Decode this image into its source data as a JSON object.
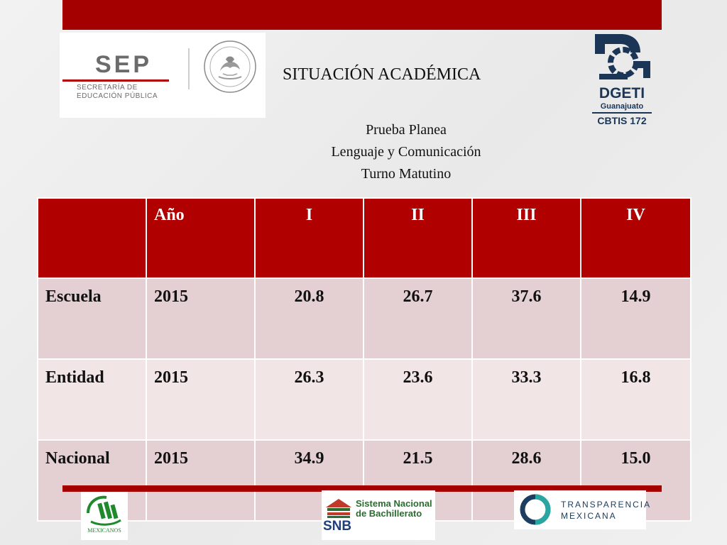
{
  "header": {
    "sep": {
      "name": "SEP",
      "subtitle_line1": "SECRETARÍA DE",
      "subtitle_line2": "EDUCACIÓN PÚBLICA"
    },
    "title": "SITUACIÓN ACADÉMICA",
    "subtitle_lines": [
      "Prueba Planea",
      "Lenguaje y Comunicación",
      "Turno Matutino"
    ],
    "dgeti": {
      "name": "DGETI",
      "state": "Guanajuato",
      "school": "CBTIS 172"
    }
  },
  "table": {
    "headers": [
      "",
      "Año",
      "I",
      "II",
      "III",
      "IV"
    ],
    "rows": [
      {
        "label": "Escuela",
        "year": "2015",
        "values": [
          "20.8",
          "26.7",
          "37.6",
          "14.9"
        ]
      },
      {
        "label": "Entidad",
        "year": "2015",
        "values": [
          "26.3",
          "23.6",
          "33.3",
          "16.8"
        ]
      },
      {
        "label": "Nacional",
        "year": "2015",
        "values": [
          "34.9",
          "21.5",
          "28.6",
          "15.0"
        ]
      }
    ]
  },
  "footer": {
    "mexicanos": "MEXICANOS",
    "snb": {
      "line1": "Sistema Nacional",
      "line2": "de Bachillerato",
      "abbr": "SNB"
    },
    "transparencia": {
      "line1": "TRANSPARENCIA",
      "line2": "MEXICANA"
    }
  },
  "colors": {
    "accent": "#a50000",
    "row_odd": "#e4cfd2",
    "row_even": "#f1e5e6",
    "dgeti_blue": "#1a3556"
  }
}
